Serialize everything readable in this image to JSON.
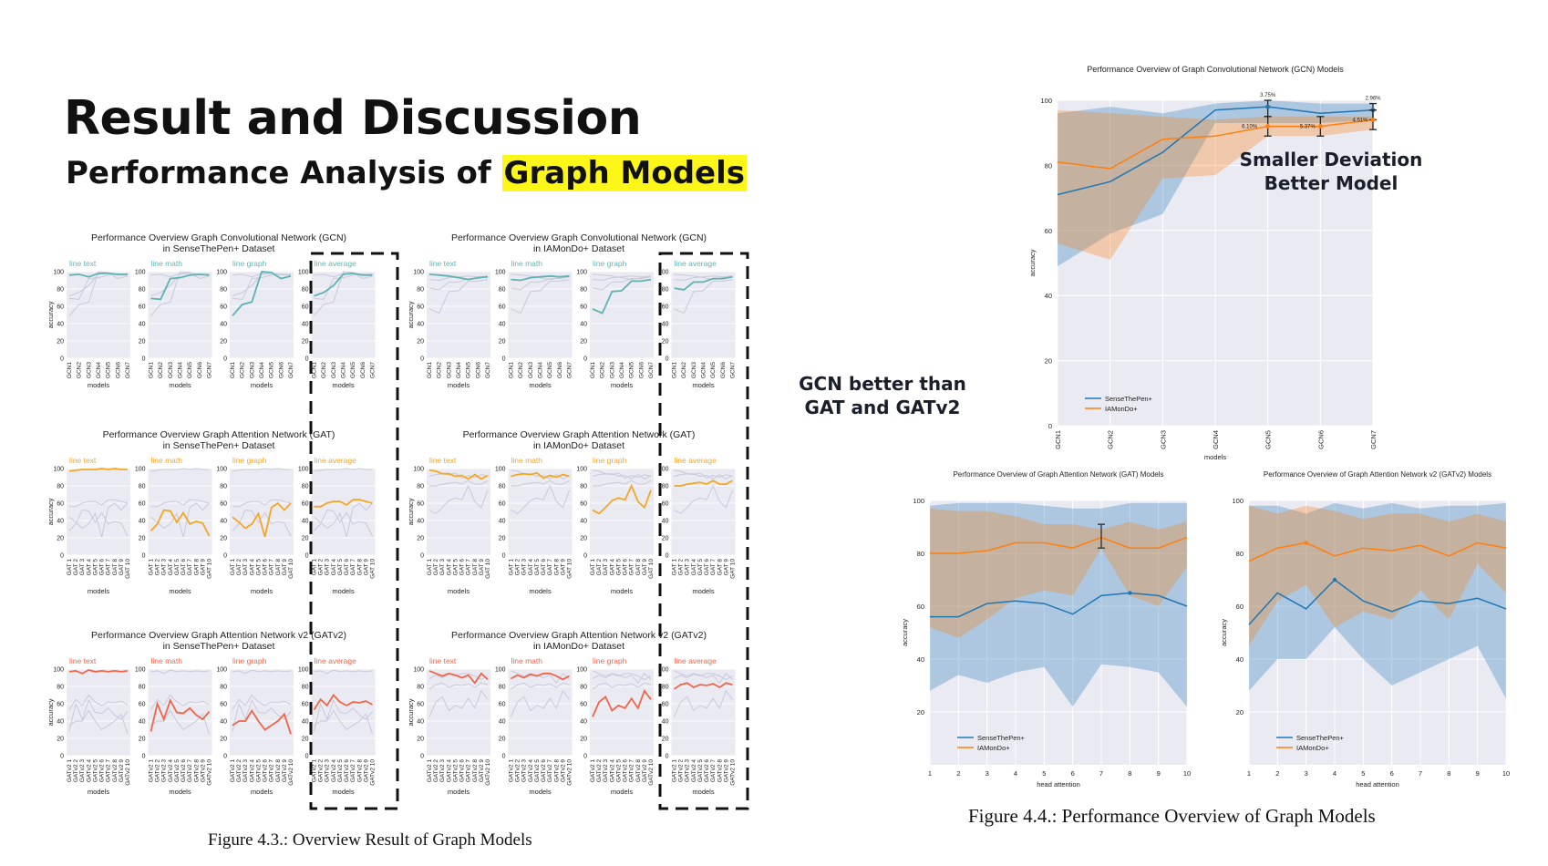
{
  "slide": {
    "title": "Result and Discussion",
    "subtitle_prefix": "Performance Analysis of ",
    "subtitle_highlight": "Graph Models",
    "callout_left_1": "GCN better than",
    "callout_left_2": "GAT and GATv2",
    "callout_right_1": "Smaller Deviation",
    "callout_right_2": "Better Model",
    "caption_43": "Figure 4.3.: Overview Result of Graph Models",
    "caption_44": "Figure 4.4.: Performance Overview of Graph Models"
  },
  "colors": {
    "teal": "#5fb3b3",
    "orange": "#f5a623",
    "red": "#f0654a",
    "blue": "#1f77b4",
    "dark_orange": "#ff7f0e",
    "plot_bg": "#eaeaf2",
    "highlight": "#fcf619"
  },
  "chart_data": [
    {
      "type": "line",
      "id": "gcn_sense",
      "title": "Performance Overview Graph Convolutional Network (GCN)",
      "subtitle": "in SenseThePen+ Dataset",
      "panels": [
        "line text",
        "line math",
        "line graph",
        "line average"
      ],
      "categories": [
        "GCN1",
        "GCN2",
        "GCN3",
        "GCN4",
        "GCN5",
        "GCN6",
        "GCN7"
      ],
      "series": [
        {
          "name": "line text",
          "values": [
            96,
            97,
            94,
            98,
            98,
            97,
            97
          ]
        },
        {
          "name": "line math",
          "values": [
            69,
            68,
            92,
            93,
            96,
            97,
            96
          ]
        },
        {
          "name": "line graph",
          "values": [
            49,
            62,
            65,
            100,
            99,
            92,
            95
          ]
        },
        {
          "name": "line average",
          "values": [
            72,
            76,
            84,
            97,
            98,
            96,
            96
          ]
        }
      ],
      "xlabel": "models",
      "ylabel": "accuracy",
      "ylim": [
        0,
        100
      ],
      "yticks": [
        0,
        20,
        40,
        60,
        80,
        100
      ],
      "color": "#5fb3b3"
    },
    {
      "type": "line",
      "id": "gcn_iam",
      "title": "Performance Overview Graph Convolutional Network (GCN)",
      "subtitle": "in IAMonDo+ Dataset",
      "panels": [
        "line text",
        "line math",
        "line graph",
        "line average"
      ],
      "categories": [
        "GCN1",
        "GCN2",
        "GCN3",
        "GCN4",
        "GCN5",
        "GCN6",
        "GCN7"
      ],
      "series": [
        {
          "name": "line text",
          "values": [
            97,
            96,
            95,
            93,
            91,
            93,
            94
          ]
        },
        {
          "name": "line math",
          "values": [
            91,
            90,
            93,
            94,
            95,
            94,
            95
          ]
        },
        {
          "name": "line graph",
          "values": [
            57,
            52,
            77,
            78,
            89,
            89,
            91
          ]
        },
        {
          "name": "line average",
          "values": [
            81,
            79,
            88,
            88,
            92,
            92,
            94
          ]
        }
      ],
      "xlabel": "models",
      "ylabel": "accuracy",
      "ylim": [
        0,
        100
      ],
      "yticks": [
        0,
        20,
        40,
        60,
        80,
        100
      ],
      "color": "#5fb3b3"
    },
    {
      "type": "line",
      "id": "gat_sense",
      "title": "Performance Overview Graph Attention Network (GAT)",
      "subtitle": "in SenseThePen+ Dataset",
      "panels": [
        "line text",
        "line math",
        "line graph",
        "line average"
      ],
      "categories": [
        "GAT 1",
        "GAT 2",
        "GAT 3",
        "GAT 4",
        "GAT 5",
        "GAT 6",
        "GAT 7",
        "GAT 8",
        "GAT 9",
        "GAT 10"
      ],
      "series": [
        {
          "name": "line text",
          "values": [
            97,
            98,
            99,
            99,
            99,
            100,
            99,
            100,
            99,
            99
          ]
        },
        {
          "name": "line math",
          "values": [
            28,
            36,
            52,
            51,
            38,
            49,
            36,
            39,
            37,
            22
          ]
        },
        {
          "name": "line graph",
          "values": [
            44,
            38,
            31,
            36,
            48,
            21,
            55,
            60,
            52,
            60
          ]
        },
        {
          "name": "line average",
          "values": [
            56,
            56,
            60,
            62,
            62,
            58,
            64,
            64,
            62,
            60
          ]
        }
      ],
      "xlabel": "models",
      "ylabel": "accuracy",
      "ylim": [
        0,
        100
      ],
      "yticks": [
        0,
        20,
        40,
        60,
        80,
        100
      ],
      "color": "#f5a623"
    },
    {
      "type": "line",
      "id": "gat_iam",
      "title": "Performance Overview Graph Attention Network (GAT)",
      "subtitle": "in IAMonDo+ Dataset",
      "panels": [
        "line text",
        "line math",
        "line graph",
        "line average"
      ],
      "categories": [
        "GAT 1",
        "GAT 2",
        "GAT 3",
        "GAT 4",
        "GAT 5",
        "GAT 6",
        "GAT 7",
        "GAT 8",
        "GAT 9",
        "GAT 10"
      ],
      "series": [
        {
          "name": "line text",
          "values": [
            98,
            97,
            94,
            94,
            91,
            92,
            88,
            93,
            88,
            92
          ]
        },
        {
          "name": "line math",
          "values": [
            91,
            93,
            94,
            93,
            95,
            89,
            92,
            90,
            93,
            91
          ]
        },
        {
          "name": "line graph",
          "values": [
            52,
            48,
            55,
            63,
            66,
            64,
            80,
            62,
            55,
            75
          ]
        },
        {
          "name": "line average",
          "values": [
            80,
            80,
            82,
            83,
            84,
            82,
            86,
            82,
            82,
            86
          ]
        }
      ],
      "xlabel": "models",
      "ylabel": "accuracy",
      "ylim": [
        0,
        100
      ],
      "yticks": [
        0,
        20,
        40,
        60,
        80,
        100
      ],
      "color": "#f5a623"
    },
    {
      "type": "line",
      "id": "gatv2_sense",
      "title": "Performance Overview Graph Attention Network v2 (GATv2)",
      "subtitle": "in SenseThePen+ Dataset",
      "panels": [
        "line text",
        "line math",
        "line graph",
        "line average"
      ],
      "categories": [
        "GATv2 1",
        "GATv2 2",
        "GATv2 3",
        "GATv2 4",
        "GATv2 5",
        "GATv2 6",
        "GATv2 7",
        "GATv2 8",
        "GATv2 9",
        "GATv2 10"
      ],
      "series": [
        {
          "name": "line text",
          "values": [
            97,
            98,
            95,
            99,
            97,
            98,
            97,
            98,
            97,
            98
          ]
        },
        {
          "name": "line math",
          "values": [
            28,
            60,
            42,
            64,
            50,
            49,
            55,
            47,
            42,
            51
          ]
        },
        {
          "name": "line graph",
          "values": [
            35,
            40,
            40,
            52,
            40,
            30,
            35,
            40,
            48,
            25
          ]
        },
        {
          "name": "line average",
          "values": [
            53,
            65,
            58,
            70,
            62,
            58,
            62,
            61,
            63,
            59
          ]
        }
      ],
      "xlabel": "models",
      "ylabel": "accuracy",
      "ylim": [
        0,
        100
      ],
      "yticks": [
        0,
        20,
        40,
        60,
        80,
        100
      ],
      "color": "#f0654a"
    },
    {
      "type": "line",
      "id": "gatv2_iam",
      "title": "Performance Overview Graph Attention Network v2 (GATv2)",
      "subtitle": "in IAMonDo+ Dataset",
      "panels": [
        "line text",
        "line math",
        "line graph",
        "line average"
      ],
      "categories": [
        "GATv2 1",
        "GATv2 2",
        "GATv2 3",
        "GATv2 4",
        "GATv2 5",
        "GATv2 6",
        "GATv2 7",
        "GATv2 8",
        "GATv2 9",
        "GATv2 10"
      ],
      "series": [
        {
          "name": "line text",
          "values": [
            98,
            95,
            92,
            95,
            93,
            90,
            93,
            84,
            95,
            88
          ]
        },
        {
          "name": "line math",
          "values": [
            89,
            93,
            90,
            94,
            92,
            95,
            95,
            92,
            88,
            92
          ]
        },
        {
          "name": "line graph",
          "values": [
            45,
            62,
            68,
            52,
            58,
            55,
            66,
            55,
            75,
            65
          ]
        },
        {
          "name": "line average",
          "values": [
            77,
            82,
            84,
            79,
            82,
            81,
            83,
            79,
            84,
            82
          ]
        }
      ],
      "xlabel": "models",
      "ylabel": "accuracy",
      "ylim": [
        0,
        100
      ],
      "yticks": [
        0,
        20,
        40,
        60,
        80,
        100
      ],
      "color": "#f0654a"
    },
    {
      "type": "area",
      "id": "gcn_overview",
      "title": "Performance Overview of Graph Convolutional Network (GCN) Models",
      "categories": [
        "GCN1",
        "GCN2",
        "GCN3",
        "GCN4",
        "GCN5",
        "GCN6",
        "GCN7"
      ],
      "series": [
        {
          "name": "SenseThePen+",
          "values": [
            71,
            75,
            84,
            97,
            98,
            96,
            97
          ],
          "min": [
            49,
            59,
            65,
            93,
            93,
            93,
            94
          ],
          "max": [
            96,
            98,
            96,
            99,
            100,
            99,
            99
          ]
        },
        {
          "name": "IAMonDo+",
          "values": [
            81,
            79,
            88,
            89,
            92,
            92,
            94
          ],
          "min": [
            56,
            51,
            76,
            77,
            89,
            89,
            91
          ],
          "max": [
            97,
            96,
            95,
            94,
            95,
            95,
            95
          ]
        }
      ],
      "annotations": [
        "3.75%",
        "6.10%",
        "5.37%",
        "2.96%",
        "4.51%"
      ],
      "xlabel": "models",
      "ylabel": "accuracy",
      "ylim": [
        0,
        100
      ],
      "yticks": [
        0,
        20,
        40,
        60,
        80,
        100
      ]
    },
    {
      "type": "area",
      "id": "gat_overview",
      "title": "Performance Overview of Graph Attention Network (GAT) Models",
      "categories": [
        "1",
        "2",
        "3",
        "4",
        "5",
        "6",
        "7",
        "8",
        "9",
        "10"
      ],
      "series": [
        {
          "name": "SenseThePen+",
          "values": [
            56,
            56,
            61,
            62,
            61,
            57,
            64,
            65,
            64,
            60
          ],
          "min": [
            28,
            34,
            31,
            35,
            37,
            22,
            38,
            37,
            35,
            22
          ],
          "max": [
            98,
            99,
            99,
            99,
            98,
            97,
            97,
            99,
            99,
            99
          ]
        },
        {
          "name": "IAMonDo+",
          "values": [
            80,
            80,
            81,
            84,
            84,
            82,
            86,
            82,
            82,
            86
          ],
          "min": [
            52,
            48,
            55,
            63,
            66,
            64,
            82,
            64,
            60,
            75
          ],
          "max": [
            97,
            96,
            96,
            94,
            91,
            91,
            89,
            92,
            89,
            92
          ]
        }
      ],
      "xlabel": "head attention",
      "ylabel": "accuracy",
      "ylim": [
        0,
        100
      ],
      "yticks": [
        20,
        40,
        60,
        80,
        100
      ]
    },
    {
      "type": "area",
      "id": "gatv2_overview",
      "title": "Performance Overview of Graph Attention Network v2 (GATv2) Models",
      "categories": [
        "1",
        "2",
        "3",
        "4",
        "5",
        "6",
        "7",
        "8",
        "9",
        "10"
      ],
      "series": [
        {
          "name": "SenseThePen+",
          "values": [
            53,
            65,
            59,
            70,
            62,
            58,
            62,
            61,
            63,
            59
          ],
          "min": [
            28,
            40,
            40,
            52,
            40,
            30,
            35,
            40,
            45,
            25
          ],
          "max": [
            98,
            98,
            95,
            99,
            97,
            99,
            97,
            98,
            98,
            99
          ]
        },
        {
          "name": "IAMonDo+",
          "values": [
            77,
            82,
            84,
            79,
            82,
            81,
            83,
            79,
            84,
            82
          ],
          "min": [
            45,
            62,
            68,
            52,
            58,
            55,
            66,
            55,
            76,
            65
          ],
          "max": [
            98,
            95,
            98,
            96,
            93,
            95,
            95,
            92,
            95,
            92
          ]
        }
      ],
      "xlabel": "head attention",
      "ylabel": "accuracy",
      "ylim": [
        0,
        100
      ],
      "yticks": [
        20,
        40,
        60,
        80,
        100
      ]
    }
  ]
}
